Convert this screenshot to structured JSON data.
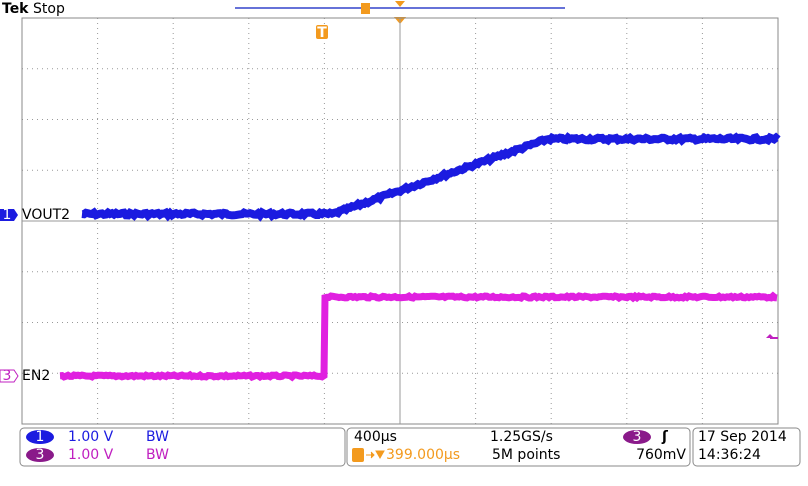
{
  "header": {
    "brand": "Tek",
    "state": "Stop"
  },
  "traces": [
    {
      "label": "VOUT2",
      "channel": "1"
    },
    {
      "label": "EN2",
      "channel": "3"
    }
  ],
  "trigger_marker": "T",
  "status": {
    "channels": [
      {
        "channel": "1",
        "scale": "1.00 V",
        "bw": "BW"
      },
      {
        "channel": "3",
        "scale": "1.00 V",
        "bw": "BW"
      }
    ],
    "timebase": "400µs",
    "sample_rate": "1.25GS/s",
    "trigger_position": "399.000µs",
    "record_length": "5M points",
    "trigger_channel": "3",
    "trigger_slope": "ʃ",
    "trigger_level": "760mV",
    "date": "17 Sep 2014",
    "time": "14:36:24"
  }
}
